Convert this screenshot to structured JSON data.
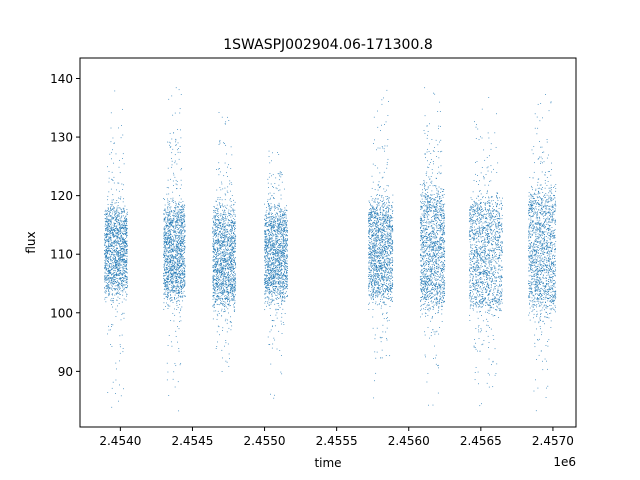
{
  "chart_data": {
    "type": "scatter",
    "title": "1SWASPJ002904.06-171300.8",
    "xlabel": "time",
    "ylabel": "flux",
    "x_offset_label": "1e6",
    "x_unit_scale": 1000000,
    "xlim": [
      2453720,
      2457160
    ],
    "ylim": [
      80.5,
      143.5
    ],
    "x_ticks": [
      2454000,
      2454500,
      2455000,
      2455500,
      2456000,
      2456500,
      2457000
    ],
    "x_tick_labels": [
      "2.4540",
      "2.4545",
      "2.4550",
      "2.4555",
      "2.4560",
      "2.4565",
      "2.4570"
    ],
    "y_ticks": [
      90,
      100,
      110,
      120,
      130,
      140
    ],
    "y_tick_labels": [
      "90",
      "100",
      "110",
      "120",
      "130",
      "140"
    ],
    "grid": false,
    "legend": "none",
    "point_color": "#1f77b4",
    "seasons": [
      {
        "start": 2453890,
        "end": 2454050,
        "mean": 110.5,
        "spread": 7,
        "outlier_min": 83,
        "outlier_max": 139
      },
      {
        "start": 2454300,
        "end": 2454450,
        "mean": 110.5,
        "spread": 8,
        "outlier_min": 83,
        "outlier_max": 139
      },
      {
        "start": 2454640,
        "end": 2454800,
        "mean": 109.5,
        "spread": 8,
        "outlier_min": 87,
        "outlier_max": 136
      },
      {
        "start": 2455000,
        "end": 2455160,
        "mean": 110.0,
        "spread": 7.5,
        "outlier_min": 84,
        "outlier_max": 128
      },
      {
        "start": 2455720,
        "end": 2455890,
        "mean": 110.5,
        "spread": 8,
        "outlier_min": 84,
        "outlier_max": 139
      },
      {
        "start": 2456080,
        "end": 2456250,
        "mean": 111.0,
        "spread": 10,
        "outlier_min": 83,
        "outlier_max": 139
      },
      {
        "start": 2456420,
        "end": 2456650,
        "mean": 110.0,
        "spread": 9.5,
        "outlier_min": 83,
        "outlier_max": 139
      },
      {
        "start": 2456830,
        "end": 2457020,
        "mean": 110.5,
        "spread": 10,
        "outlier_min": 83,
        "outlier_max": 139.5
      }
    ]
  }
}
